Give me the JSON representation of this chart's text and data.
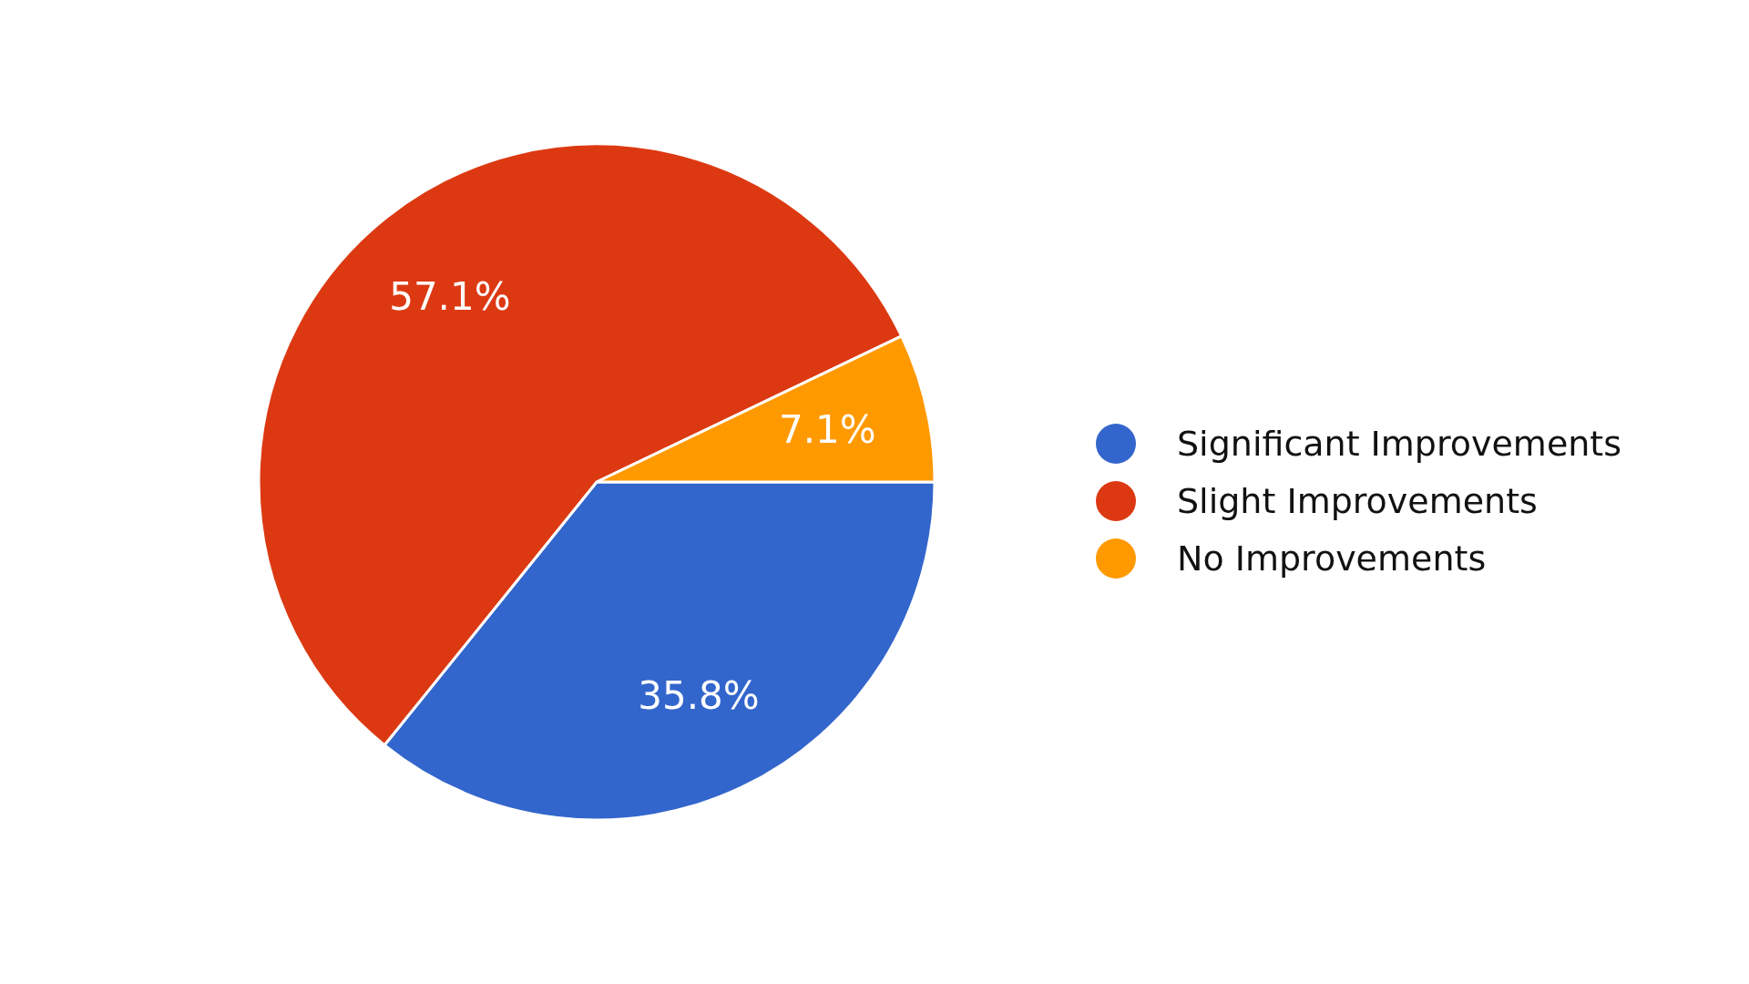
{
  "chart_data": {
    "type": "pie",
    "categories": [
      "Significant Improvements",
      "Slight Improvements",
      "No Improvements"
    ],
    "values": [
      35.8,
      57.1,
      7.1
    ],
    "value_labels": [
      "35.8%",
      "57.1%",
      "7.1%"
    ],
    "colors": [
      "#3366cc",
      "#dc3912",
      "#ff9900"
    ],
    "legend": "right"
  }
}
